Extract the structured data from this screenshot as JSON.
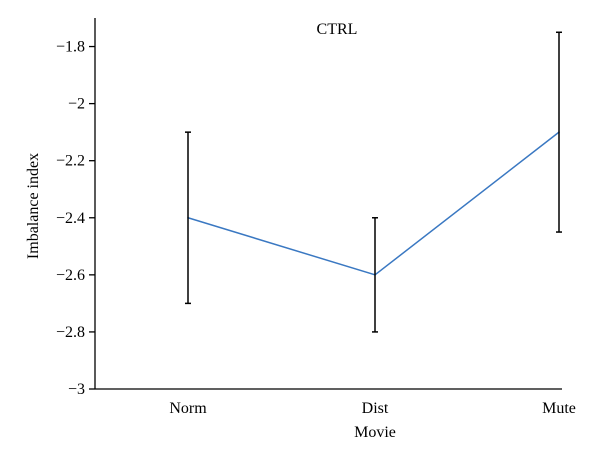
{
  "chart_data": {
    "type": "line",
    "title": "CTRL",
    "xlabel": "Movie",
    "ylabel": "Imbalance index",
    "categories": [
      "Norm",
      "Dist",
      "Mute"
    ],
    "series": [
      {
        "values": [
          -2.4,
          -2.6,
          -2.1
        ],
        "error_low": [
          -2.7,
          -2.8,
          -2.45
        ],
        "error_high": [
          -2.1,
          -2.4,
          -1.75
        ],
        "color": "#3a78c2"
      }
    ],
    "ylim": [
      -3,
      -1.7
    ],
    "yticks": [
      -1.8,
      -2,
      -2.2,
      -2.4,
      -2.6,
      -2.8,
      -3
    ],
    "ytick_labels": [
      "−1.8",
      "−2",
      "−2.2",
      "−2.4",
      "−2.6",
      "−2.8",
      "−3"
    ],
    "grid": false,
    "legend": "none"
  }
}
